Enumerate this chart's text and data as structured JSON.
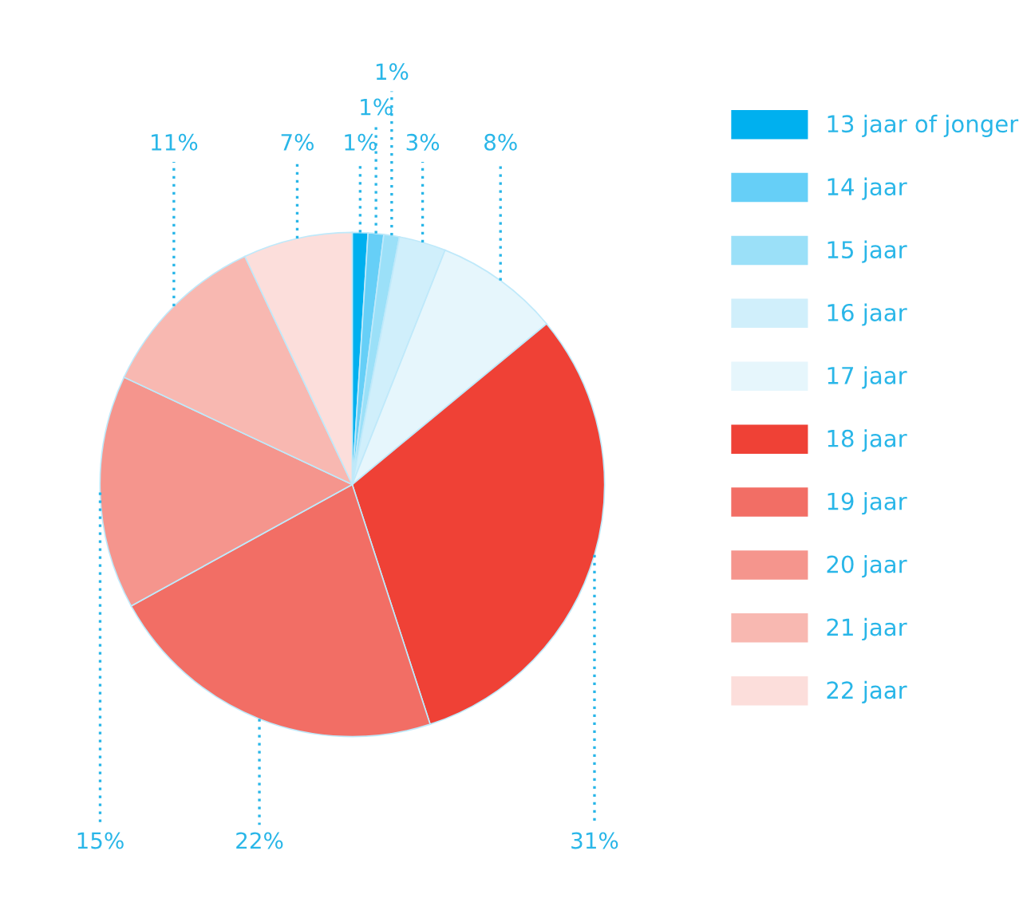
{
  "chart_data": {
    "type": "pie",
    "categories": [
      "13 jaar of jonger",
      "14 jaar",
      "15 jaar",
      "16 jaar",
      "17 jaar",
      "18 jaar",
      "19 jaar",
      "20 jaar",
      "21 jaar",
      "22 jaar"
    ],
    "values": [
      1,
      1,
      1,
      3,
      8,
      31,
      22,
      15,
      11,
      7
    ],
    "value_labels": [
      "1%",
      "1%",
      "1%",
      "3%",
      "8%",
      "31%",
      "22%",
      "15%",
      "11%",
      "7%"
    ],
    "colors": [
      "#00b0ef",
      "#66cff7",
      "#9be0f8",
      "#d0effb",
      "#e6f6fc",
      "#ef4136",
      "#f26e65",
      "#f5958d",
      "#f8b8b1",
      "#fcdedb"
    ],
    "legend": "right"
  }
}
